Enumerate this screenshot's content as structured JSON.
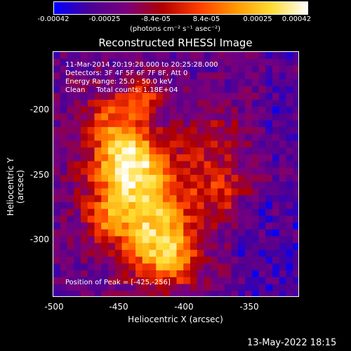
{
  "colorbar": {
    "ticks": [
      "-0.00042",
      "-0.00025",
      "-8.4e-05",
      "8.4e-05",
      "0.00025",
      "0.00042"
    ],
    "units": "(photons cm⁻² s⁻¹ asec⁻²)",
    "gradient": [
      "#0000ff",
      "#4b0096",
      "#7b007b",
      "#b00000",
      "#ff3c00",
      "#ff9600",
      "#ffdc32",
      "#ffffff"
    ]
  },
  "title": "Reconstructed RHESSI Image",
  "info": {
    "line1": "11-Mar-2014 20:19:28.000 to 20:25:28.000",
    "line2": "Detectors: 3F 4F 5F 6F 7F 8F, Att 0",
    "line3": "Energy Range: 25.0 - 50.0 keV",
    "line4": "Clean     Total counts: 1.18E+04",
    "peak": "Position of Peak = [-425,-256]"
  },
  "axes": {
    "xlabel": "Heliocentric X (arcsec)",
    "ylabel": "Heliocentric Y (arcsec)",
    "xticks": [
      "-500",
      "-450",
      "-400",
      "-350"
    ],
    "yticks": [
      "-200",
      "-250",
      "-300"
    ]
  },
  "footer": "13-May-2022 18:15"
}
